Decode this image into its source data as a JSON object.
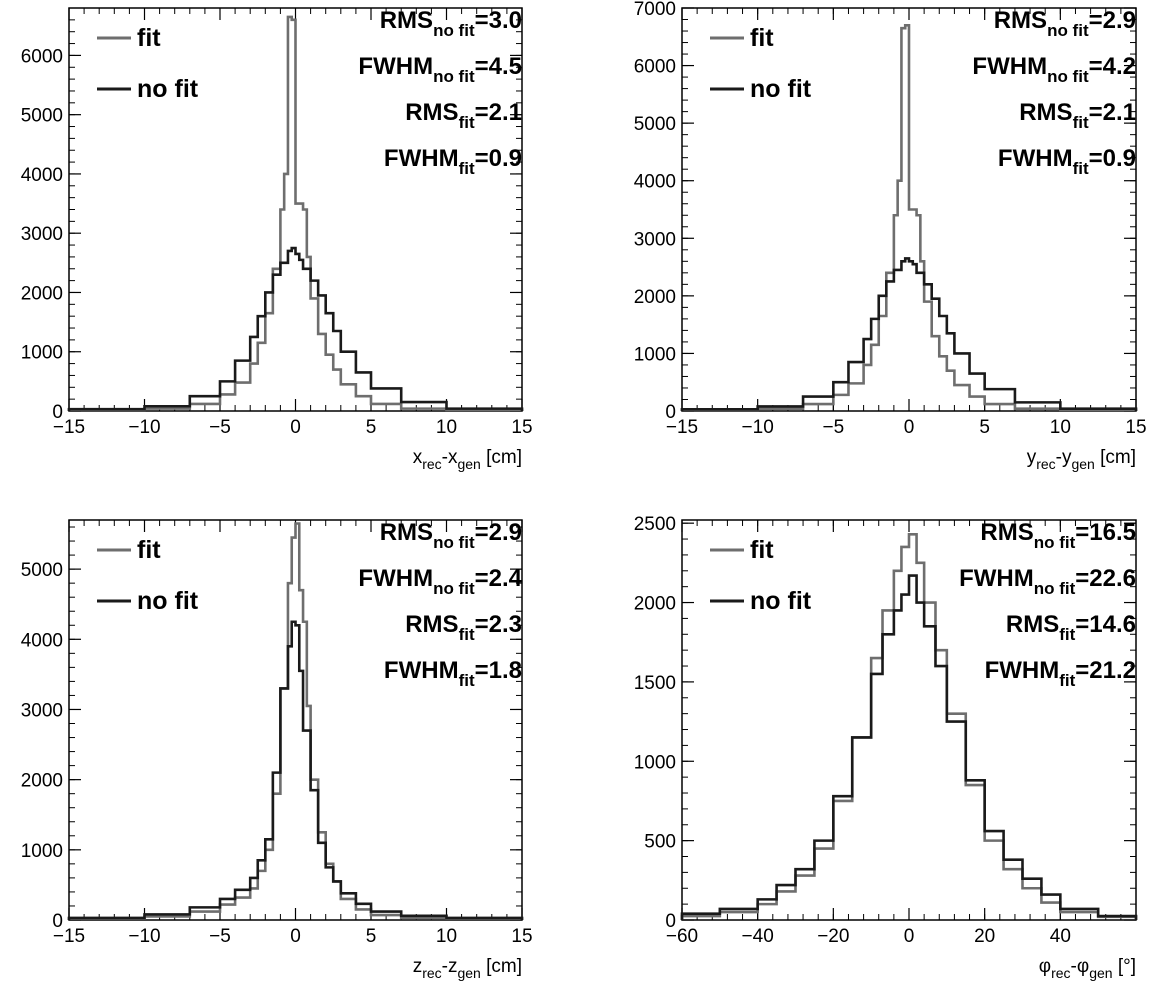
{
  "chart_data": [
    {
      "type": "step-histogram",
      "xlabel": {
        "a": "x",
        "a_sub": "rec",
        "sep": "-",
        "b": "x",
        "b_sub": "gen",
        "unit": " [cm]"
      },
      "xlim": [
        -15,
        15
      ],
      "ylim": [
        0,
        6800
      ],
      "x_ticks": [
        -15,
        -10,
        -5,
        0,
        5,
        10,
        15
      ],
      "x_tick_labels": [
        "−15",
        "−10",
        "−5",
        "0",
        "5",
        "10",
        "15"
      ],
      "y_ticks": [
        0,
        1000,
        2000,
        3000,
        4000,
        5000,
        6000
      ],
      "y_tick_labels": [
        "0",
        "1000",
        "2000",
        "3000",
        "4000",
        "5000",
        "6000"
      ],
      "legend": [
        {
          "name": "fit",
          "color": "#6e6e6e"
        },
        {
          "name": "no fit",
          "color": "#1a1a1a"
        }
      ],
      "stats": [
        {
          "label": "RMS",
          "sub": "no fit",
          "value": "=3.0"
        },
        {
          "label": "FWHM",
          "sub": "no fit",
          "value": "=4.5"
        },
        {
          "label": "RMS",
          "sub": "fit",
          "value": "=2.1"
        },
        {
          "label": "FWHM",
          "sub": "fit",
          "value": "=0.9"
        }
      ],
      "series": [
        {
          "name": "fit",
          "color": "#6e6e6e",
          "edges": [
            -15,
            -10,
            -7,
            -5,
            -4,
            -3,
            -2.5,
            -2,
            -1.5,
            -1,
            -0.75,
            -0.5,
            -0.25,
            0,
            0.5,
            0.75,
            1,
            1.5,
            2,
            2.5,
            3,
            4,
            5,
            7,
            10,
            15
          ],
          "counts": [
            20,
            40,
            120,
            280,
            480,
            800,
            1150,
            1650,
            2400,
            3400,
            4000,
            6650,
            6600,
            3500,
            3400,
            2600,
            1900,
            1300,
            950,
            700,
            450,
            250,
            120,
            40,
            20
          ]
        },
        {
          "name": "no fit",
          "color": "#1a1a1a",
          "edges": [
            -15,
            -10,
            -7,
            -5,
            -4,
            -3,
            -2.5,
            -2,
            -1.5,
            -1,
            -0.5,
            -0.25,
            0,
            0.25,
            0.5,
            1,
            1.5,
            2,
            2.5,
            3,
            4,
            5,
            7,
            10,
            15
          ],
          "counts": [
            30,
            80,
            250,
            500,
            850,
            1250,
            1600,
            2000,
            2300,
            2500,
            2700,
            2750,
            2650,
            2550,
            2400,
            2200,
            1950,
            1650,
            1350,
            1000,
            650,
            380,
            150,
            40
          ]
        }
      ]
    },
    {
      "type": "step-histogram",
      "xlabel": {
        "a": "y",
        "a_sub": "rec",
        "sep": "-",
        "b": "y",
        "b_sub": "gen",
        "unit": " [cm]"
      },
      "xlim": [
        -15,
        15
      ],
      "ylim": [
        0,
        7000
      ],
      "x_ticks": [
        -15,
        -10,
        -5,
        0,
        5,
        10,
        15
      ],
      "x_tick_labels": [
        "−15",
        "−10",
        "−5",
        "0",
        "5",
        "10",
        "15"
      ],
      "y_ticks": [
        0,
        1000,
        2000,
        3000,
        4000,
        5000,
        6000,
        7000
      ],
      "y_tick_labels": [
        "0",
        "1000",
        "2000",
        "3000",
        "4000",
        "5000",
        "6000",
        "7000"
      ],
      "legend": [
        {
          "name": "fit",
          "color": "#6e6e6e"
        },
        {
          "name": "no fit",
          "color": "#1a1a1a"
        }
      ],
      "stats": [
        {
          "label": "RMS",
          "sub": "no fit",
          "value": "=2.9"
        },
        {
          "label": "FWHM",
          "sub": "no fit",
          "value": "=4.2"
        },
        {
          "label": "RMS",
          "sub": "fit",
          "value": "=2.1"
        },
        {
          "label": "FWHM",
          "sub": "fit",
          "value": "=0.9"
        }
      ],
      "series": [
        {
          "name": "fit",
          "color": "#6e6e6e",
          "edges": [
            -15,
            -10,
            -7,
            -5,
            -4,
            -3,
            -2.5,
            -2,
            -1.5,
            -1,
            -0.75,
            -0.5,
            -0.25,
            0,
            0.5,
            0.75,
            1,
            1.5,
            2,
            2.5,
            3,
            4,
            5,
            7,
            10,
            15
          ],
          "counts": [
            20,
            40,
            120,
            280,
            480,
            800,
            1150,
            1650,
            2400,
            3400,
            4000,
            6650,
            6700,
            3500,
            3400,
            2600,
            1900,
            1300,
            950,
            700,
            450,
            250,
            120,
            40,
            20
          ]
        },
        {
          "name": "no fit",
          "color": "#1a1a1a",
          "edges": [
            -15,
            -10,
            -7,
            -5,
            -4,
            -3,
            -2.5,
            -2,
            -1.5,
            -1,
            -0.5,
            -0.25,
            0,
            0.25,
            0.5,
            1,
            1.5,
            2,
            2.5,
            3,
            4,
            5,
            7,
            10,
            15
          ],
          "counts": [
            30,
            80,
            250,
            500,
            850,
            1250,
            1600,
            2000,
            2250,
            2450,
            2600,
            2650,
            2600,
            2550,
            2400,
            2200,
            1950,
            1650,
            1350,
            1000,
            650,
            380,
            150,
            40
          ]
        }
      ]
    },
    {
      "type": "step-histogram",
      "xlabel": {
        "a": "z",
        "a_sub": "rec",
        "sep": "-",
        "b": "z",
        "b_sub": "gen",
        "unit": " [cm]"
      },
      "xlim": [
        -15,
        15
      ],
      "ylim": [
        0,
        5700
      ],
      "x_ticks": [
        -15,
        -10,
        -5,
        0,
        5,
        10,
        15
      ],
      "x_tick_labels": [
        "−15",
        "−10",
        "−5",
        "0",
        "5",
        "10",
        "15"
      ],
      "y_ticks": [
        0,
        1000,
        2000,
        3000,
        4000,
        5000
      ],
      "y_tick_labels": [
        "0",
        "1000",
        "2000",
        "3000",
        "4000",
        "5000"
      ],
      "legend": [
        {
          "name": "fit",
          "color": "#6e6e6e"
        },
        {
          "name": "no fit",
          "color": "#1a1a1a"
        }
      ],
      "stats": [
        {
          "label": "RMS",
          "sub": "no fit",
          "value": "=2.9"
        },
        {
          "label": "FWHM",
          "sub": "no fit",
          "value": "=2.4"
        },
        {
          "label": "RMS",
          "sub": "fit",
          "value": "=2.3"
        },
        {
          "label": "FWHM",
          "sub": "fit",
          "value": "=1.8"
        }
      ],
      "series": [
        {
          "name": "fit",
          "color": "#6e6e6e",
          "edges": [
            -15,
            -10,
            -7,
            -5,
            -4,
            -3,
            -2.5,
            -2,
            -1.5,
            -1,
            -0.5,
            -0.25,
            0,
            0.25,
            0.5,
            0.75,
            1,
            1.5,
            2,
            2.5,
            3,
            4,
            5,
            7,
            10,
            15
          ],
          "counts": [
            20,
            50,
            120,
            220,
            320,
            450,
            700,
            1000,
            1800,
            3300,
            4800,
            5450,
            5650,
            4700,
            4250,
            3050,
            2000,
            1250,
            800,
            550,
            300,
            150,
            70,
            30,
            20
          ]
        },
        {
          "name": "no fit",
          "color": "#1a1a1a",
          "edges": [
            -15,
            -10,
            -7,
            -5,
            -4,
            -3,
            -2.5,
            -2,
            -1.5,
            -1,
            -0.5,
            -0.25,
            0,
            0.25,
            0.5,
            1,
            1.5,
            2,
            2.5,
            3,
            4,
            5,
            7,
            10,
            15
          ],
          "counts": [
            30,
            80,
            180,
            300,
            430,
            600,
            850,
            1150,
            2100,
            3300,
            3900,
            4250,
            4200,
            3550,
            2700,
            1850,
            1100,
            750,
            550,
            380,
            230,
            120,
            60,
            30
          ]
        }
      ]
    },
    {
      "type": "step-histogram",
      "xlabel": {
        "a": "φ",
        "a_sub": "rec",
        "sep": "-",
        "b": "φ",
        "b_sub": "gen",
        "unit": " [°]"
      },
      "xlim": [
        -60,
        60
      ],
      "ylim": [
        0,
        2520
      ],
      "x_ticks": [
        -60,
        -40,
        -20,
        0,
        20,
        40
      ],
      "x_tick_labels": [
        "−60",
        "−40",
        "−20",
        "0",
        "20",
        "40"
      ],
      "y_ticks": [
        0,
        500,
        1000,
        1500,
        2000,
        2500
      ],
      "y_tick_labels": [
        "0",
        "500",
        "1000",
        "1500",
        "2000",
        "2500"
      ],
      "legend": [
        {
          "name": "fit",
          "color": "#6e6e6e"
        },
        {
          "name": "no fit",
          "color": "#1a1a1a"
        }
      ],
      "stats": [
        {
          "label": "RMS",
          "sub": "no fit",
          "value": "=16.5"
        },
        {
          "label": "FWHM",
          "sub": "no fit",
          "value": "=22.6"
        },
        {
          "label": "RMS",
          "sub": "fit",
          "value": "=14.6"
        },
        {
          "label": "FWHM",
          "sub": "fit",
          "value": "=21.2"
        }
      ],
      "series": [
        {
          "name": "fit",
          "color": "#6e6e6e",
          "edges": [
            -60,
            -50,
            -40,
            -35,
            -30,
            -25,
            -20,
            -15,
            -10,
            -7,
            -4,
            -2,
            0,
            2,
            4,
            7,
            10,
            15,
            20,
            25,
            30,
            35,
            40,
            50,
            60
          ],
          "counts": [
            25,
            50,
            100,
            180,
            280,
            450,
            750,
            1150,
            1650,
            1950,
            2200,
            2350,
            2430,
            2250,
            2000,
            1700,
            1300,
            850,
            500,
            320,
            200,
            110,
            50,
            20
          ]
        },
        {
          "name": "no fit",
          "color": "#1a1a1a",
          "edges": [
            -60,
            -50,
            -40,
            -35,
            -30,
            -25,
            -20,
            -15,
            -10,
            -7,
            -4,
            -2,
            0,
            2,
            4,
            7,
            10,
            15,
            20,
            25,
            30,
            35,
            40,
            50,
            60
          ],
          "counts": [
            40,
            70,
            130,
            220,
            320,
            500,
            780,
            1150,
            1550,
            1800,
            1950,
            2050,
            2170,
            2000,
            1850,
            1600,
            1250,
            880,
            560,
            380,
            260,
            160,
            70,
            25
          ]
        }
      ]
    }
  ]
}
